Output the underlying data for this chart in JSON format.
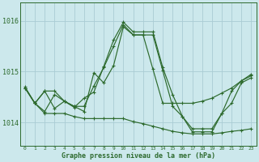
{
  "title": "Graphe pression niveau de la mer (hPa)",
  "background_color": "#cce8ec",
  "grid_color": "#aaccd4",
  "line_color": "#2d6a2d",
  "ylim": [
    1013.55,
    1016.35
  ],
  "yticks": [
    1014,
    1015,
    1016
  ],
  "ytick_labels": [
    "1014",
    "1015",
    "1016"
  ],
  "x_labels": [
    "0",
    "1",
    "2",
    "3",
    "4",
    "5",
    "6",
    "7",
    "8",
    "9",
    "10",
    "11",
    "12",
    "13",
    "14",
    "15",
    "16",
    "17",
    "18",
    "19",
    "20",
    "21",
    "22",
    "23"
  ],
  "series": {
    "spike": [
      1014.7,
      1014.38,
      1014.62,
      1014.28,
      1014.42,
      1014.3,
      1014.48,
      1014.6,
      1015.1,
      1015.62,
      1015.97,
      1015.78,
      1015.78,
      1015.78,
      1015.08,
      1014.55,
      1014.12,
      1013.88,
      1013.88,
      1013.88,
      1014.18,
      1014.62,
      1014.82,
      1014.95
    ],
    "upper": [
      1014.68,
      1014.38,
      1014.62,
      1014.62,
      1014.42,
      1014.32,
      1014.32,
      1014.72,
      1015.08,
      1015.5,
      1015.92,
      1015.72,
      1015.72,
      1015.05,
      1014.38,
      1014.38,
      1014.38,
      1014.38,
      1014.42,
      1014.48,
      1014.58,
      1014.68,
      1014.82,
      1014.92
    ],
    "mid": [
      1014.68,
      1014.38,
      1014.22,
      1014.55,
      1014.42,
      1014.32,
      1014.22,
      1014.98,
      1014.78,
      1015.12,
      1015.88,
      1015.72,
      1015.72,
      1015.72,
      1015.02,
      1014.32,
      1014.12,
      1013.82,
      1013.82,
      1013.82,
      1014.18,
      1014.38,
      1014.78,
      1014.88
    ],
    "lower": [
      1014.68,
      1014.38,
      1014.18,
      1014.18,
      1014.18,
      1014.12,
      1014.08,
      1014.08,
      1014.08,
      1014.08,
      1014.08,
      1014.02,
      1013.98,
      1013.93,
      1013.88,
      1013.83,
      1013.8,
      1013.78,
      1013.78,
      1013.78,
      1013.8,
      1013.83,
      1013.85,
      1013.88
    ]
  }
}
